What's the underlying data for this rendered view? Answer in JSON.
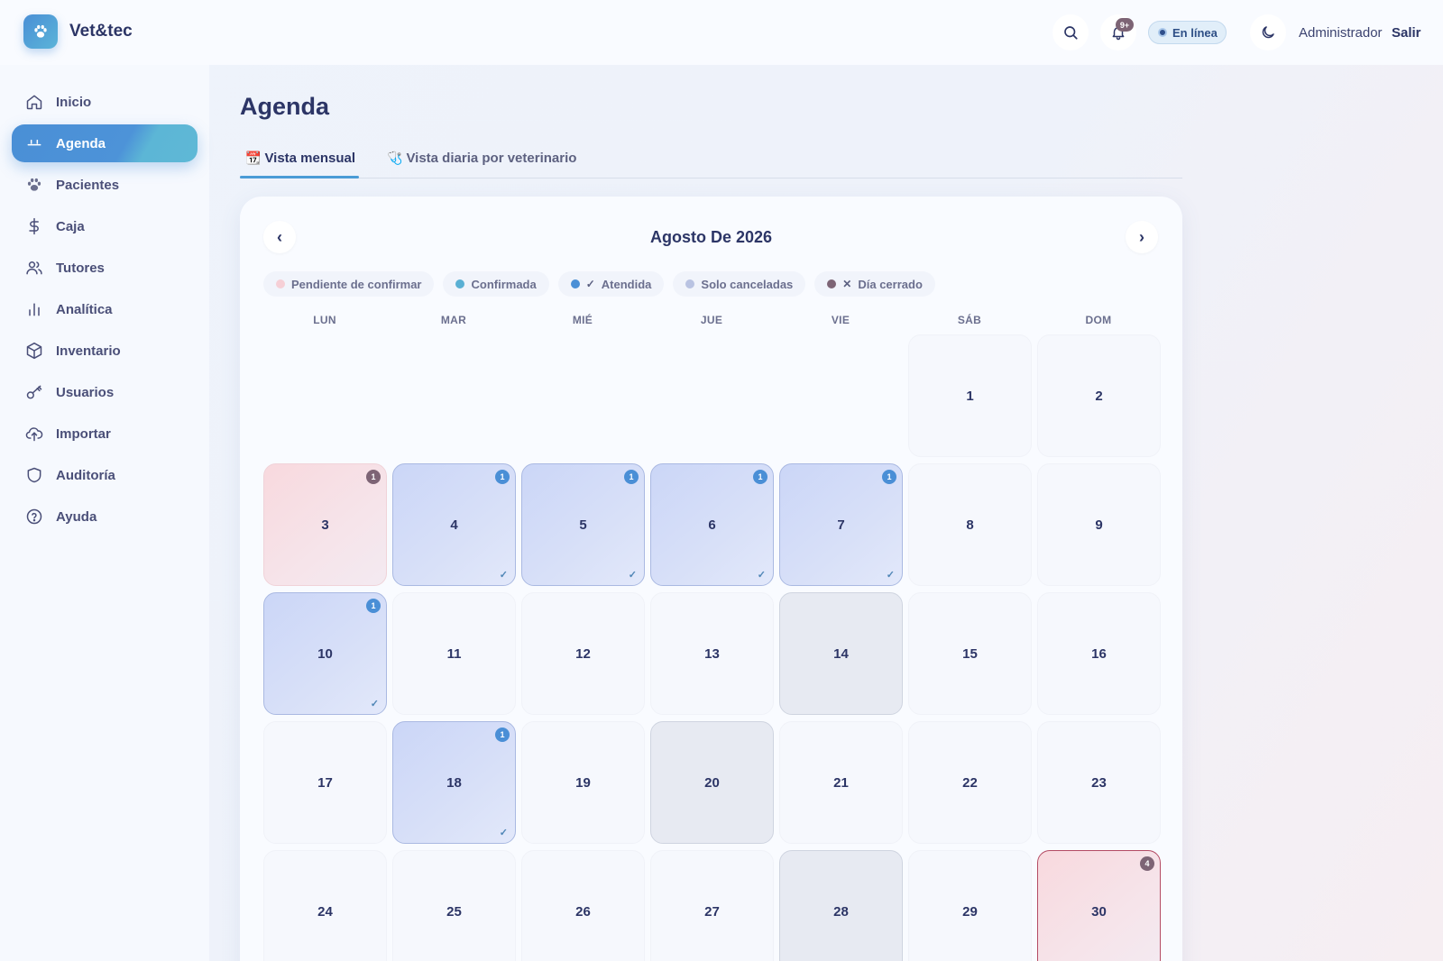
{
  "header": {
    "brand": "Vet&tec",
    "notifications_badge": "9+",
    "status": "En línea",
    "user": "Administrador",
    "logout": "Salir"
  },
  "sidebar": {
    "items": [
      {
        "label": "Inicio",
        "icon": "home-icon",
        "active": false
      },
      {
        "label": "Agenda",
        "icon": "calendar-icon",
        "active": true
      },
      {
        "label": "Pacientes",
        "icon": "paw-icon",
        "active": false
      },
      {
        "label": "Caja",
        "icon": "dollar-icon",
        "active": false
      },
      {
        "label": "Tutores",
        "icon": "users-icon",
        "active": false
      },
      {
        "label": "Analítica",
        "icon": "bar-chart-icon",
        "active": false
      },
      {
        "label": "Inventario",
        "icon": "box-icon",
        "active": false
      },
      {
        "label": "Usuarios",
        "icon": "key-icon",
        "active": false
      },
      {
        "label": "Importar",
        "icon": "upload-cloud-icon",
        "active": false
      },
      {
        "label": "Auditoría",
        "icon": "shield-icon",
        "active": false
      },
      {
        "label": "Ayuda",
        "icon": "help-circle-icon",
        "active": false
      }
    ]
  },
  "main": {
    "title": "Agenda",
    "tabs": [
      {
        "label": "Vista mensual",
        "icon": "📆",
        "active": true
      },
      {
        "label": "Vista diaria por veterinario",
        "icon": "🩺",
        "active": false
      }
    ]
  },
  "calendar": {
    "month_title": "Agosto De 2026",
    "prev": "‹",
    "next": "›",
    "legend": [
      {
        "label": "Pendiente de confirmar",
        "color": "#f6cfd6",
        "mark": ""
      },
      {
        "label": "Confirmada",
        "color": "#5ab0d4",
        "mark": ""
      },
      {
        "label": "Atendida",
        "color": "#4a8fd6",
        "mark": "✓"
      },
      {
        "label": "Solo canceladas",
        "color": "#b9c3e2",
        "mark": ""
      },
      {
        "label": "Día cerrado",
        "color": "#7d6475",
        "mark": "✕"
      }
    ],
    "weekdays": [
      "LUN",
      "MAR",
      "MIÉ",
      "JUE",
      "VIE",
      "SÁB",
      "DOM"
    ],
    "days": [
      {
        "n": "1",
        "state": "normal",
        "count": "",
        "check": false
      },
      {
        "n": "2",
        "state": "normal",
        "count": "",
        "check": false
      },
      {
        "n": "3",
        "state": "pending",
        "count": "1",
        "check": false
      },
      {
        "n": "4",
        "state": "confirmed",
        "count": "1",
        "check": true
      },
      {
        "n": "5",
        "state": "confirmed",
        "count": "1",
        "check": true
      },
      {
        "n": "6",
        "state": "confirmed",
        "count": "1",
        "check": true
      },
      {
        "n": "7",
        "state": "confirmed",
        "count": "1",
        "check": true
      },
      {
        "n": "8",
        "state": "normal",
        "count": "",
        "check": false
      },
      {
        "n": "9",
        "state": "normal",
        "count": "",
        "check": false
      },
      {
        "n": "10",
        "state": "confirmed",
        "count": "1",
        "check": true
      },
      {
        "n": "11",
        "state": "normal",
        "count": "",
        "check": false
      },
      {
        "n": "12",
        "state": "normal",
        "count": "",
        "check": false
      },
      {
        "n": "13",
        "state": "normal",
        "count": "",
        "check": false
      },
      {
        "n": "14",
        "state": "closed",
        "count": "",
        "check": false
      },
      {
        "n": "15",
        "state": "normal",
        "count": "",
        "check": false
      },
      {
        "n": "16",
        "state": "normal",
        "count": "",
        "check": false
      },
      {
        "n": "17",
        "state": "normal",
        "count": "",
        "check": false
      },
      {
        "n": "18",
        "state": "confirmed",
        "count": "1",
        "check": true
      },
      {
        "n": "19",
        "state": "normal",
        "count": "",
        "check": false
      },
      {
        "n": "20",
        "state": "closed",
        "count": "",
        "check": false
      },
      {
        "n": "21",
        "state": "normal",
        "count": "",
        "check": false
      },
      {
        "n": "22",
        "state": "normal",
        "count": "",
        "check": false
      },
      {
        "n": "23",
        "state": "normal",
        "count": "",
        "check": false
      },
      {
        "n": "24",
        "state": "normal",
        "count": "",
        "check": false
      },
      {
        "n": "25",
        "state": "normal",
        "count": "",
        "check": false
      },
      {
        "n": "26",
        "state": "normal",
        "count": "",
        "check": false
      },
      {
        "n": "27",
        "state": "normal",
        "count": "",
        "check": false
      },
      {
        "n": "28",
        "state": "closed",
        "count": "",
        "check": false
      },
      {
        "n": "29",
        "state": "normal",
        "count": "",
        "check": false
      },
      {
        "n": "30",
        "state": "pending-strong",
        "count": "4",
        "check": false
      }
    ],
    "badge_colors": {
      "pending": "#7d6475",
      "confirmed": "#4a8fd6"
    }
  }
}
